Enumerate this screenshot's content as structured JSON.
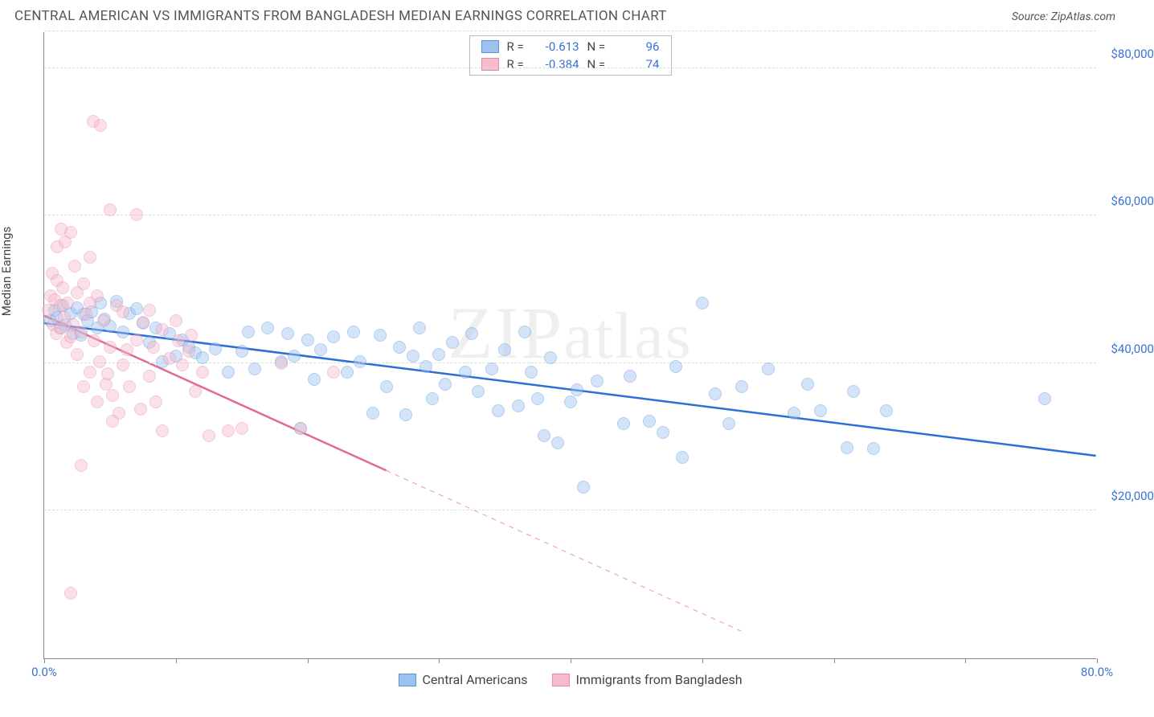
{
  "title": "CENTRAL AMERICAN VS IMMIGRANTS FROM BANGLADESH MEDIAN EARNINGS CORRELATION CHART",
  "source_label": "Source:",
  "source_name": "ZipAtlas.com",
  "watermark": "ZIPatlas",
  "ylabel": "Median Earnings",
  "chart": {
    "type": "scatter",
    "background_color": "#ffffff",
    "grid_color": "#dddddd",
    "axis_color": "#888888",
    "x": {
      "min": 0,
      "max": 80,
      "tick_step": 10,
      "label_min": "0.0%",
      "label_max": "80.0%"
    },
    "y": {
      "min": 0,
      "max": 85000,
      "ticks": [
        20000,
        40000,
        60000,
        80000
      ],
      "tick_labels": [
        "$20,000",
        "$40,000",
        "$60,000",
        "$80,000"
      ]
    },
    "marker_radius": 8,
    "marker_opacity": 0.45,
    "series": [
      {
        "id": "blue",
        "name": "Central Americans",
        "fill": "#9ec2f0",
        "stroke": "#5a94db",
        "line_color": "#2e6fd6",
        "R_label": "R =",
        "R": "-0.613",
        "N_label": "N =",
        "N": "96",
        "trend": {
          "x1": 0,
          "y1": 45500,
          "x2": 80,
          "y2": 27500,
          "dash_after_x": 80
        },
        "points": [
          [
            0.5,
            45800
          ],
          [
            0.8,
            47200
          ],
          [
            1.0,
            46200
          ],
          [
            1.2,
            44800
          ],
          [
            1.4,
            47800
          ],
          [
            1.6,
            45200
          ],
          [
            2.0,
            46800
          ],
          [
            2.2,
            44000
          ],
          [
            2.5,
            47500
          ],
          [
            2.8,
            43800
          ],
          [
            3.0,
            46600
          ],
          [
            3.3,
            45800
          ],
          [
            3.6,
            47000
          ],
          [
            4.0,
            44800
          ],
          [
            4.3,
            48200
          ],
          [
            4.6,
            46000
          ],
          [
            5.0,
            45000
          ],
          [
            5.5,
            48400
          ],
          [
            6.0,
            44200
          ],
          [
            6.5,
            46800
          ],
          [
            7.0,
            47400
          ],
          [
            7.5,
            45400
          ],
          [
            8.0,
            42800
          ],
          [
            8.5,
            44800
          ],
          [
            9.0,
            40200
          ],
          [
            9.5,
            44000
          ],
          [
            10.0,
            41000
          ],
          [
            10.5,
            43200
          ],
          [
            11.0,
            42200
          ],
          [
            11.5,
            41400
          ],
          [
            12.0,
            40800
          ],
          [
            13.0,
            42000
          ],
          [
            14.0,
            38800
          ],
          [
            15.0,
            41600
          ],
          [
            15.5,
            44200
          ],
          [
            16.0,
            39200
          ],
          [
            17.0,
            44800
          ],
          [
            18.0,
            40200
          ],
          [
            18.5,
            44000
          ],
          [
            19.0,
            41000
          ],
          [
            19.5,
            31200
          ],
          [
            20.0,
            43200
          ],
          [
            20.5,
            37800
          ],
          [
            21.0,
            41800
          ],
          [
            22.0,
            43600
          ],
          [
            23.0,
            38800
          ],
          [
            23.5,
            44200
          ],
          [
            24.0,
            40200
          ],
          [
            25.0,
            33200
          ],
          [
            25.5,
            43800
          ],
          [
            26.0,
            36800
          ],
          [
            27.0,
            42200
          ],
          [
            27.5,
            33000
          ],
          [
            28.0,
            41000
          ],
          [
            28.5,
            44800
          ],
          [
            29.0,
            39600
          ],
          [
            29.5,
            35200
          ],
          [
            30.0,
            41200
          ],
          [
            30.5,
            37200
          ],
          [
            31.0,
            42800
          ],
          [
            32.0,
            38800
          ],
          [
            32.5,
            44000
          ],
          [
            33.0,
            36200
          ],
          [
            34.0,
            39200
          ],
          [
            34.5,
            33600
          ],
          [
            35.0,
            41800
          ],
          [
            36.0,
            34200
          ],
          [
            36.5,
            44200
          ],
          [
            37.0,
            38800
          ],
          [
            37.5,
            35200
          ],
          [
            38.0,
            30200
          ],
          [
            38.5,
            40800
          ],
          [
            39.0,
            29200
          ],
          [
            40.0,
            34800
          ],
          [
            40.5,
            36400
          ],
          [
            41.0,
            23200
          ],
          [
            42.0,
            37600
          ],
          [
            44.0,
            31800
          ],
          [
            44.5,
            38200
          ],
          [
            46.0,
            32200
          ],
          [
            47.0,
            30600
          ],
          [
            48.0,
            39600
          ],
          [
            48.5,
            27200
          ],
          [
            50.0,
            48200
          ],
          [
            51.0,
            35800
          ],
          [
            52.0,
            31800
          ],
          [
            53.0,
            36800
          ],
          [
            55.0,
            39200
          ],
          [
            57.0,
            33200
          ],
          [
            58.0,
            37200
          ],
          [
            59.0,
            33600
          ],
          [
            61.0,
            28600
          ],
          [
            61.5,
            36200
          ],
          [
            63.0,
            28400
          ],
          [
            64.0,
            33600
          ],
          [
            76.0,
            35200
          ]
        ]
      },
      {
        "id": "pink",
        "name": "Immigrants from Bangladesh",
        "fill": "#f4bccd",
        "stroke": "#e88aa7",
        "line_color": "#e26b8f",
        "R_label": "R =",
        "R": "-0.384",
        "N_label": "N =",
        "N": "74",
        "trend": {
          "x1": 0,
          "y1": 46500,
          "x2": 26,
          "y2": 25500,
          "dash_after_x": 26,
          "dash_end_x": 53,
          "dash_end_y": 3700
        },
        "points": [
          [
            0.3,
            47200
          ],
          [
            0.5,
            49200
          ],
          [
            0.6,
            52200
          ],
          [
            0.7,
            45200
          ],
          [
            0.8,
            48600
          ],
          [
            0.9,
            44000
          ],
          [
            1.0,
            51200
          ],
          [
            1.0,
            55800
          ],
          [
            1.2,
            47800
          ],
          [
            1.3,
            44800
          ],
          [
            1.4,
            50200
          ],
          [
            1.5,
            46200
          ],
          [
            1.6,
            56400
          ],
          [
            1.7,
            42800
          ],
          [
            1.8,
            48200
          ],
          [
            2.0,
            43600
          ],
          [
            2.0,
            57800
          ],
          [
            2.2,
            45200
          ],
          [
            2.3,
            53200
          ],
          [
            2.5,
            41200
          ],
          [
            2.5,
            49600
          ],
          [
            2.8,
            44200
          ],
          [
            3.0,
            36800
          ],
          [
            3.0,
            50800
          ],
          [
            3.2,
            46600
          ],
          [
            3.5,
            38800
          ],
          [
            3.5,
            54400
          ],
          [
            3.7,
            72800
          ],
          [
            3.8,
            43000
          ],
          [
            4.0,
            34800
          ],
          [
            4.0,
            49200
          ],
          [
            4.2,
            40200
          ],
          [
            4.3,
            72200
          ],
          [
            4.5,
            45800
          ],
          [
            4.7,
            37200
          ],
          [
            5.0,
            42200
          ],
          [
            5.0,
            60800
          ],
          [
            5.2,
            35600
          ],
          [
            5.5,
            47800
          ],
          [
            5.7,
            33200
          ],
          [
            6.0,
            39800
          ],
          [
            6.0,
            47000
          ],
          [
            6.3,
            41800
          ],
          [
            6.5,
            36800
          ],
          [
            7.0,
            60200
          ],
          [
            7.0,
            43200
          ],
          [
            7.3,
            33800
          ],
          [
            7.5,
            45600
          ],
          [
            8.0,
            38200
          ],
          [
            8.0,
            47200
          ],
          [
            8.3,
            42200
          ],
          [
            8.5,
            34800
          ],
          [
            9.0,
            30800
          ],
          [
            9.0,
            44600
          ],
          [
            9.5,
            40600
          ],
          [
            10.0,
            45800
          ],
          [
            10.2,
            43000
          ],
          [
            10.5,
            39800
          ],
          [
            11.0,
            41600
          ],
          [
            11.2,
            43800
          ],
          [
            11.5,
            36200
          ],
          [
            12.0,
            38800
          ],
          [
            12.5,
            30200
          ],
          [
            14.0,
            30800
          ],
          [
            15.0,
            31200
          ],
          [
            18.0,
            40000
          ],
          [
            19.5,
            31200
          ],
          [
            22.0,
            38800
          ],
          [
            2.0,
            8800
          ],
          [
            2.8,
            26200
          ],
          [
            5.2,
            32200
          ],
          [
            4.8,
            38600
          ],
          [
            3.5,
            48200
          ],
          [
            1.3,
            58200
          ]
        ]
      }
    ]
  }
}
